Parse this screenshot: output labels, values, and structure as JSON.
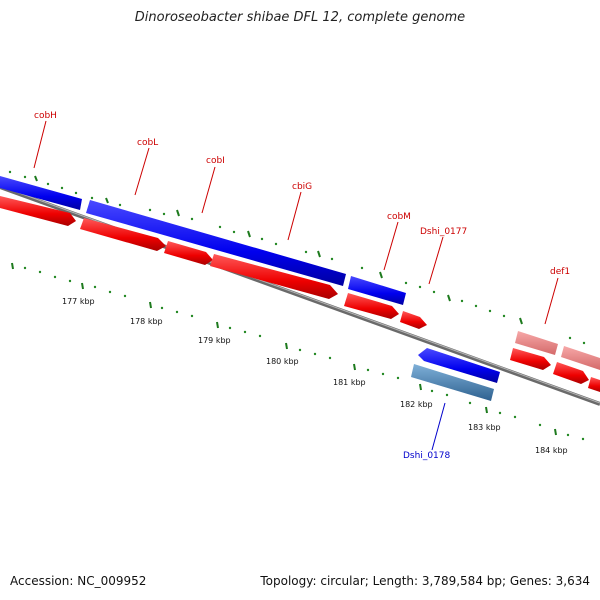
{
  "title": "Dinoroseobacter shibae DFL 12, complete genome",
  "footer": {
    "accession": "Accession: NC_009952",
    "summary": "Topology: circular; Length: 3,789,584 bp; Genes: 3,634"
  },
  "colors": {
    "background": "#ffffff",
    "backbone": "#888888",
    "cds_red": "#ff0000",
    "gene_blue": "#0000ff",
    "faded_red": "#f08080",
    "steel_blue": "#4682b4",
    "tick_green": "#007700",
    "label_red": "#cc0000",
    "label_blue": "#0000cc"
  },
  "ruler": {
    "unit": "kbp",
    "labels": [
      "177 kbp",
      "178 kbp",
      "179 kbp",
      "180 kbp",
      "181 kbp",
      "182 kbp",
      "183 kbp",
      "184 kbp"
    ]
  },
  "gene_labels": [
    {
      "text": "cobH",
      "color": "label_red"
    },
    {
      "text": "cobL",
      "color": "label_red"
    },
    {
      "text": "cobI",
      "color": "label_red"
    },
    {
      "text": "cbiG",
      "color": "label_red"
    },
    {
      "text": "cobM",
      "color": "label_red"
    },
    {
      "text": "Dshi_0177",
      "color": "label_red"
    },
    {
      "text": "def1",
      "color": "label_red"
    },
    {
      "text": "Dshi_0178",
      "color": "label_blue"
    }
  ]
}
